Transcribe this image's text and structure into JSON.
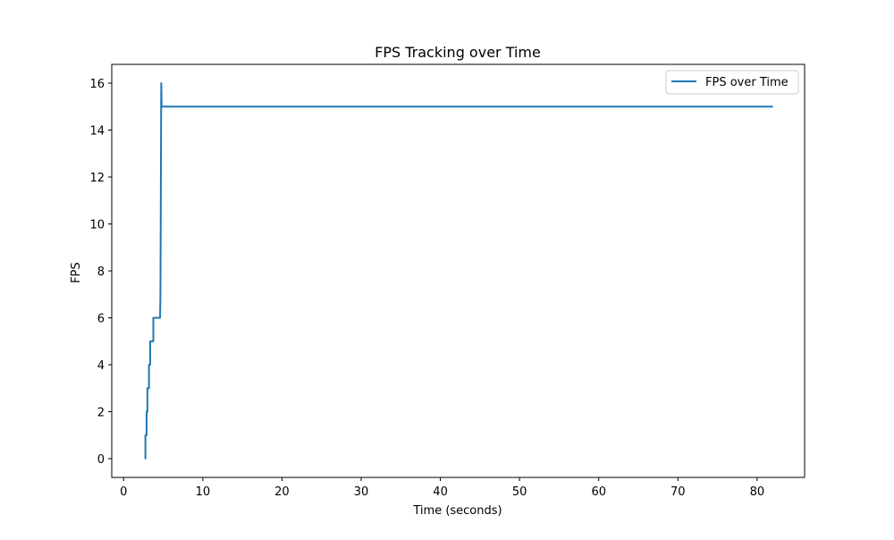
{
  "chart_data": {
    "type": "line",
    "title": "FPS Tracking over Time",
    "xlabel": "Time (seconds)",
    "ylabel": "FPS",
    "xlim": [
      -1.5,
      86.0
    ],
    "ylim": [
      -0.8,
      16.8
    ],
    "xticks": [
      0,
      10,
      20,
      30,
      40,
      50,
      60,
      70,
      80
    ],
    "yticks": [
      0,
      2,
      4,
      6,
      8,
      10,
      12,
      14,
      16
    ],
    "grid": false,
    "legend_position": "top-right",
    "series": [
      {
        "name": "FPS over Time",
        "color": "#1f77b4",
        "x": [
          2.7,
          2.75,
          2.75,
          2.9,
          2.9,
          3.0,
          3.0,
          3.2,
          3.2,
          3.35,
          3.35,
          3.6,
          3.6,
          3.75,
          3.75,
          4.1,
          4.1,
          4.6,
          4.65,
          4.75,
          4.8,
          4.85,
          82.0
        ],
        "y": [
          0,
          0,
          1,
          1,
          2,
          2,
          3,
          3,
          4,
          4,
          5,
          5,
          5,
          5,
          6,
          6,
          6,
          6,
          7,
          16,
          15,
          15,
          15
        ]
      }
    ]
  }
}
